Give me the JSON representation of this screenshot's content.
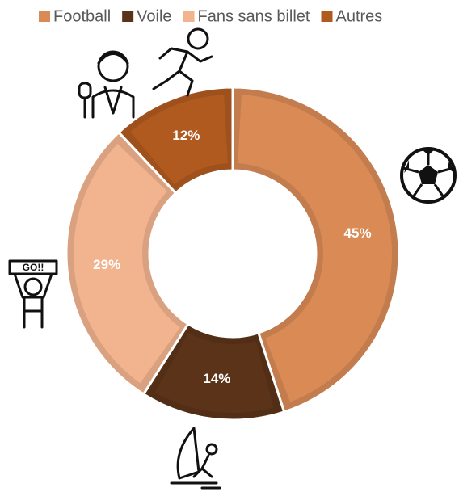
{
  "chart_data": {
    "type": "donut",
    "series": [
      {
        "name": "Football",
        "color": "#d98a55",
        "values": [
          45
        ],
        "value_labels": [
          "45%"
        ]
      },
      {
        "name": "Voile",
        "color": "#5b3318",
        "values": [
          14
        ],
        "value_labels": [
          "14%"
        ]
      },
      {
        "name": "Fans sans billet",
        "color": "#f2b38f",
        "values": [
          29
        ],
        "value_labels": [
          "29%"
        ]
      },
      {
        "name": "Autres",
        "color": "#b05a20",
        "values": [
          12
        ],
        "value_labels": [
          "12%"
        ]
      }
    ],
    "legend": "top"
  }
}
